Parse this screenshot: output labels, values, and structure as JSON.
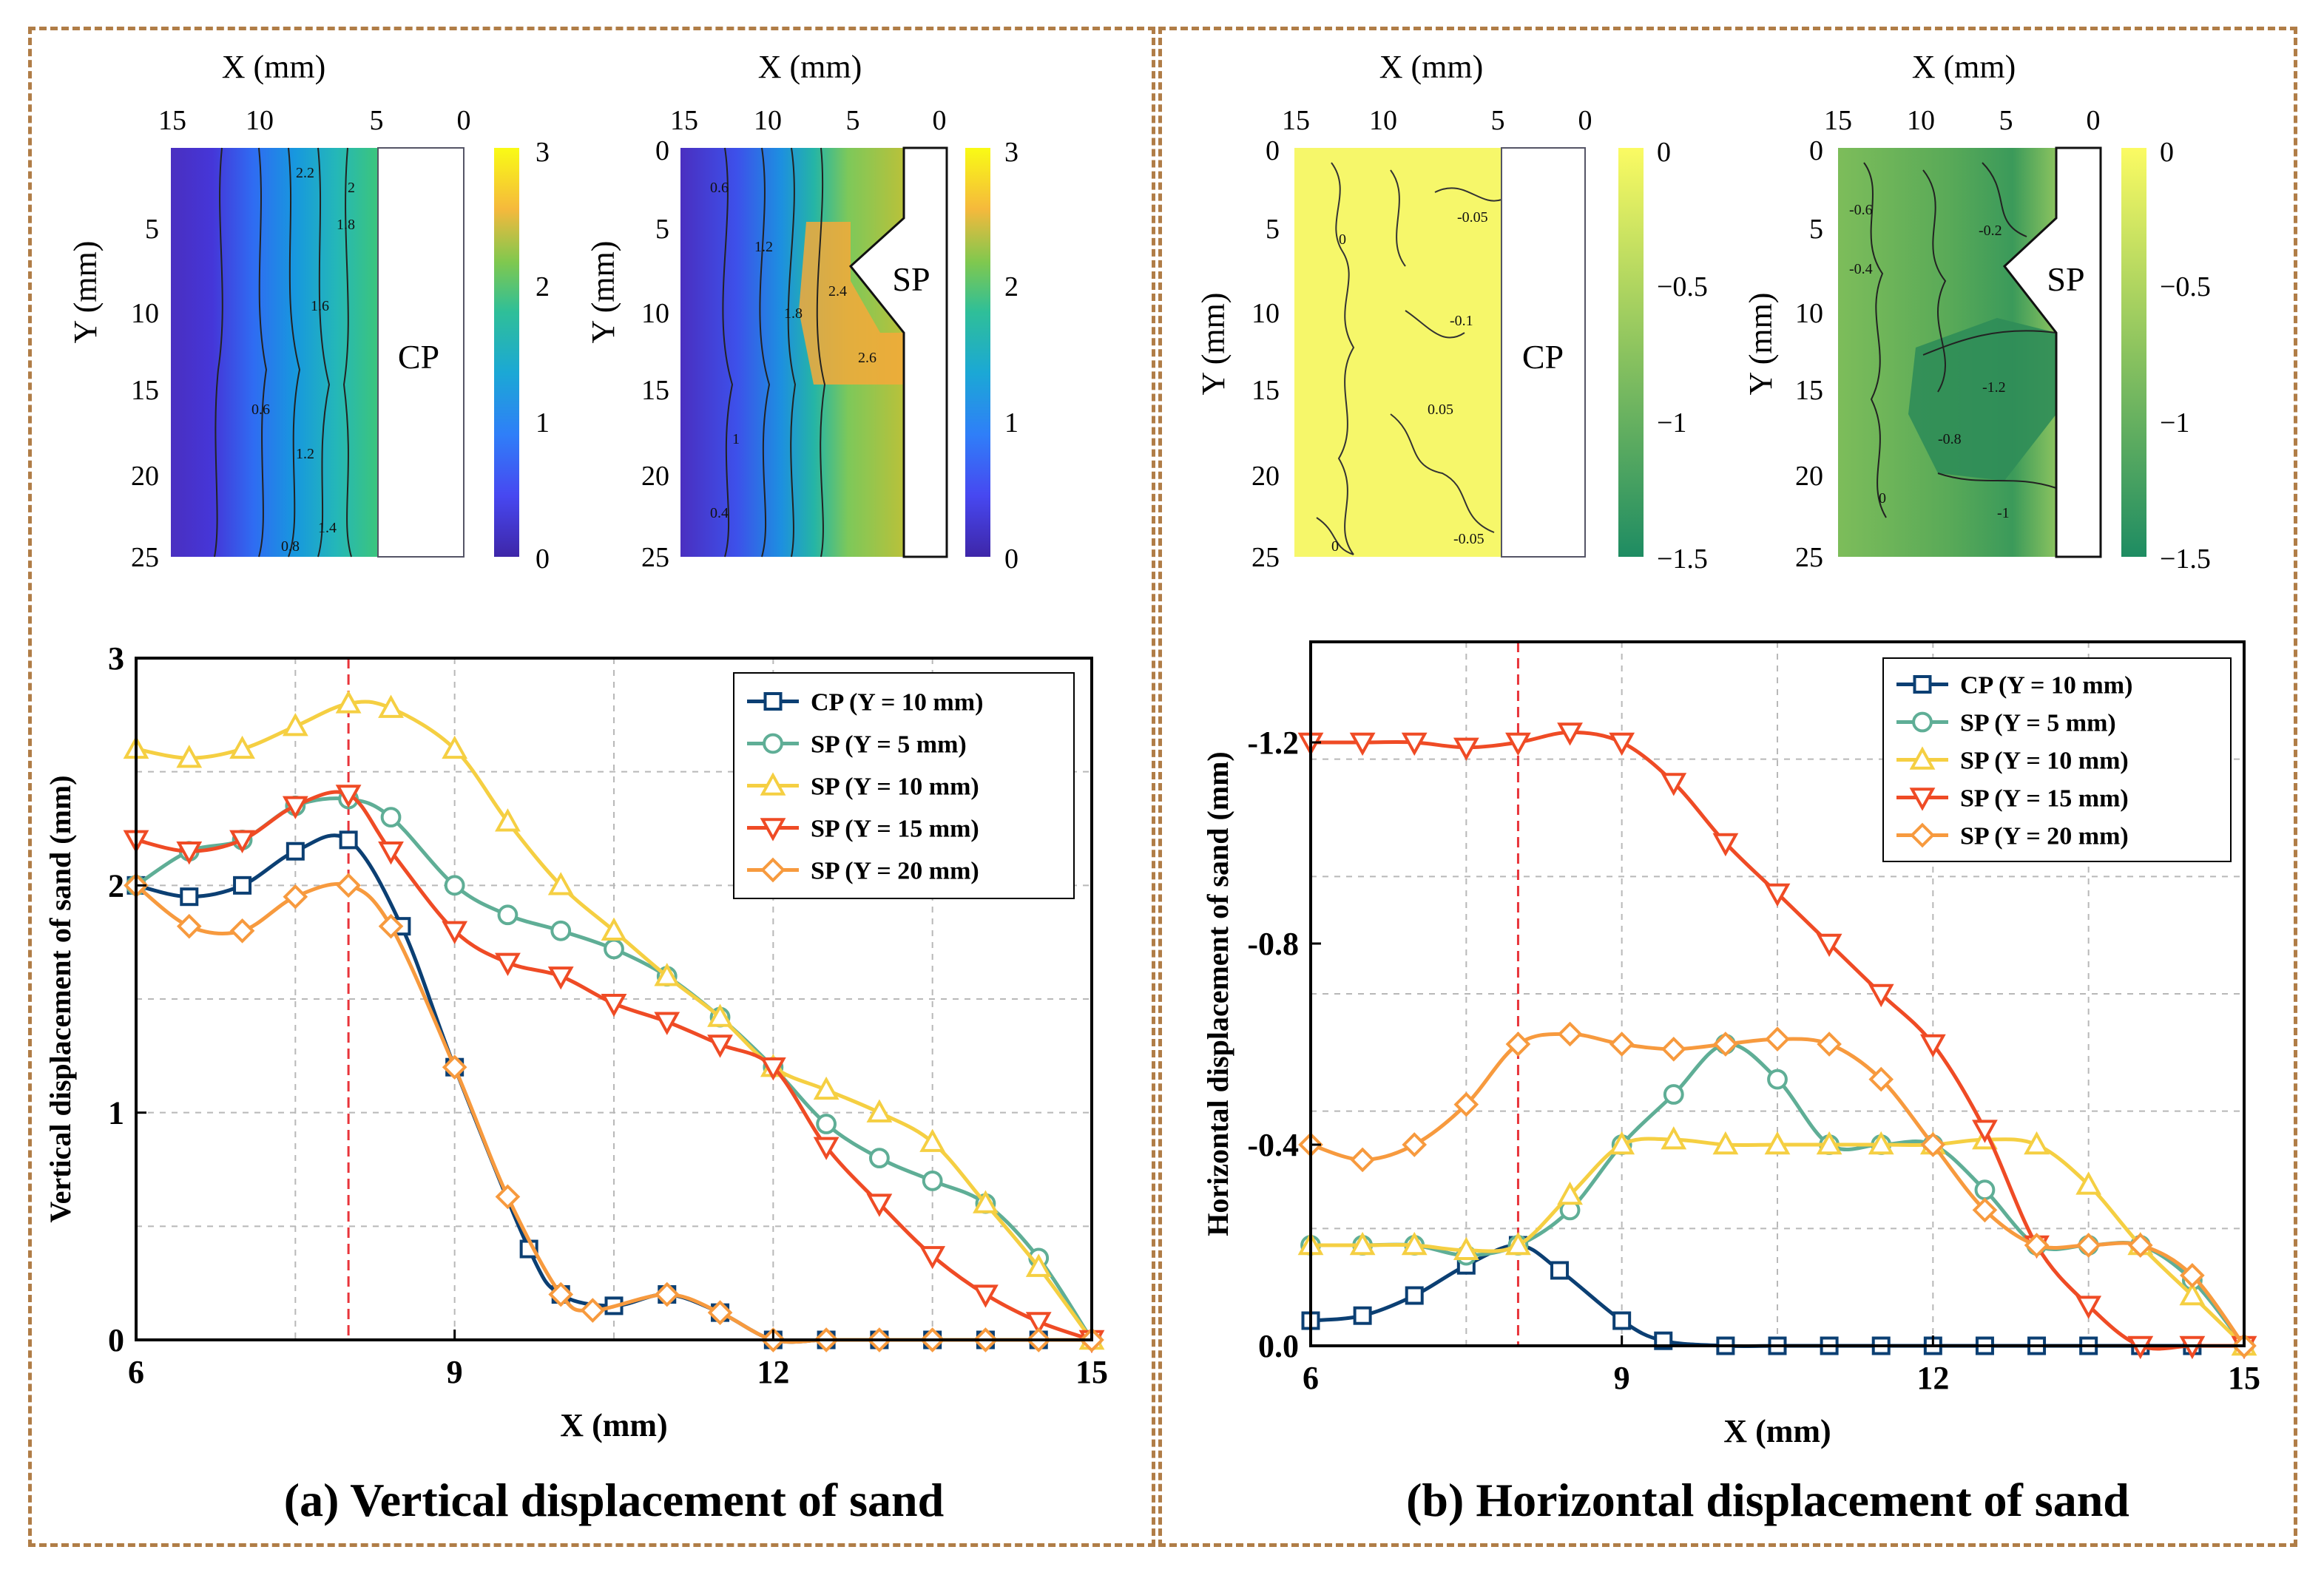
{
  "chart_data": [
    {
      "panel": "a",
      "type": "line",
      "caption": "(a) Vertical displacement of sand",
      "xlabel": "X (mm)",
      "ylabel": "Vertical displacement of sand (mm)",
      "xlim": [
        6,
        15
      ],
      "ylim": [
        0,
        3
      ],
      "xticks": [
        "6",
        "9",
        "12",
        "15"
      ],
      "yticks": [
        "0",
        "1",
        "2",
        "3"
      ],
      "grid": true,
      "legend_position": "top-right",
      "reference_line_x": 8,
      "series": [
        {
          "name": "CP (Y = 10 mm)",
          "color": "#0b3f73",
          "marker": "square",
          "x": [
            6,
            6.5,
            7,
            7.5,
            8,
            8.5,
            9,
            9.7,
            10,
            10.5,
            11,
            11.5,
            12,
            12.5,
            13,
            13.5,
            14,
            14.5,
            15
          ],
          "y": [
            2.0,
            1.95,
            2.0,
            2.15,
            2.2,
            1.82,
            1.2,
            0.4,
            0.2,
            0.15,
            0.2,
            0.12,
            0.0,
            0.0,
            0.0,
            0.0,
            0.0,
            0.0,
            0.0
          ]
        },
        {
          "name": "SP (Y = 5 mm)",
          "color": "#5fae96",
          "marker": "circle",
          "x": [
            6,
            6.5,
            7,
            7.5,
            8,
            8.4,
            9,
            9.5,
            10,
            10.5,
            11,
            11.5,
            12,
            12.5,
            13,
            13.5,
            14,
            14.5,
            15
          ],
          "y": [
            2.0,
            2.15,
            2.2,
            2.35,
            2.38,
            2.3,
            2.0,
            1.87,
            1.8,
            1.72,
            1.6,
            1.42,
            1.2,
            0.95,
            0.8,
            0.7,
            0.6,
            0.36,
            0.0
          ]
        },
        {
          "name": "SP (Y = 10 mm)",
          "color": "#f5cf42",
          "marker": "triangle-up",
          "x": [
            6,
            6.5,
            7,
            7.5,
            8,
            8.4,
            9,
            9.5,
            10,
            10.5,
            11,
            11.5,
            12,
            12.5,
            13,
            13.5,
            14,
            14.5,
            15
          ],
          "y": [
            2.6,
            2.56,
            2.6,
            2.7,
            2.8,
            2.78,
            2.6,
            2.28,
            2.0,
            1.8,
            1.6,
            1.42,
            1.2,
            1.1,
            1.0,
            0.87,
            0.6,
            0.32,
            0.0
          ]
        },
        {
          "name": "SP (Y = 15 mm)",
          "color": "#ef4b25",
          "marker": "triangle-down",
          "x": [
            6,
            6.5,
            7,
            7.5,
            8,
            8.4,
            9,
            9.5,
            10,
            10.5,
            11,
            11.5,
            12,
            12.5,
            13,
            13.5,
            14,
            14.5,
            15
          ],
          "y": [
            2.2,
            2.15,
            2.2,
            2.35,
            2.4,
            2.15,
            1.8,
            1.66,
            1.6,
            1.48,
            1.4,
            1.3,
            1.2,
            0.85,
            0.6,
            0.37,
            0.2,
            0.08,
            0.0
          ]
        },
        {
          "name": "SP (Y = 20 mm)",
          "color": "#f79a3e",
          "marker": "diamond",
          "x": [
            6,
            6.5,
            7,
            7.5,
            8,
            8.4,
            9,
            9.5,
            10,
            10.3,
            11,
            11.5,
            12,
            12.5,
            13,
            13.5,
            14,
            14.5,
            15
          ],
          "y": [
            2.0,
            1.82,
            1.8,
            1.95,
            2.0,
            1.82,
            1.2,
            0.63,
            0.2,
            0.13,
            0.2,
            0.12,
            0.0,
            0.0,
            0.0,
            0.0,
            0.0,
            0.0,
            0.0
          ]
        }
      ]
    },
    {
      "panel": "b",
      "type": "line",
      "caption": "(b) Horizontal displacement of sand",
      "xlabel": "X (mm)",
      "ylabel": "Horizontal displacement of sand (mm)",
      "xlim": [
        6,
        15
      ],
      "ylim": [
        0,
        -1.4
      ],
      "xticks": [
        "6",
        "9",
        "12",
        "15"
      ],
      "yticks": [
        "0.0",
        "-0.4",
        "-0.8",
        "-1.2"
      ],
      "grid": true,
      "legend_position": "top-right",
      "reference_line_x": 8,
      "series": [
        {
          "name": "CP (Y = 10 mm)",
          "color": "#0b3f73",
          "marker": "square",
          "x": [
            6,
            6.5,
            7,
            7.5,
            8,
            8.4,
            9,
            9.4,
            10,
            10.5,
            11,
            11.5,
            12,
            12.5,
            13,
            13.5,
            14,
            14.5,
            15
          ],
          "y": [
            -0.05,
            -0.06,
            -0.1,
            -0.16,
            -0.2,
            -0.15,
            -0.05,
            -0.01,
            0.0,
            0.0,
            0.0,
            0.0,
            0.0,
            0.0,
            0.0,
            0.0,
            0.0,
            0.0,
            0.0
          ]
        },
        {
          "name": "SP (Y = 5 mm)",
          "color": "#5fae96",
          "marker": "circle",
          "x": [
            6,
            6.5,
            7,
            7.5,
            8,
            8.5,
            9,
            9.5,
            10,
            10.5,
            11,
            11.5,
            12,
            12.5,
            13,
            13.5,
            14,
            14.5,
            15
          ],
          "y": [
            -0.2,
            -0.2,
            -0.2,
            -0.18,
            -0.2,
            -0.27,
            -0.4,
            -0.5,
            -0.6,
            -0.53,
            -0.4,
            -0.4,
            -0.4,
            -0.31,
            -0.2,
            -0.2,
            -0.2,
            -0.13,
            0.0
          ]
        },
        {
          "name": "SP (Y = 10 mm)",
          "color": "#f5cf42",
          "marker": "triangle-up",
          "x": [
            6,
            6.5,
            7,
            7.5,
            8,
            8.5,
            9,
            9.5,
            10,
            10.5,
            11,
            11.5,
            12,
            12.5,
            13,
            13.5,
            14,
            14.5,
            15
          ],
          "y": [
            -0.2,
            -0.2,
            -0.2,
            -0.19,
            -0.2,
            -0.3,
            -0.4,
            -0.41,
            -0.4,
            -0.4,
            -0.4,
            -0.4,
            -0.4,
            -0.41,
            -0.4,
            -0.32,
            -0.2,
            -0.1,
            0.0
          ]
        },
        {
          "name": "SP (Y = 15 mm)",
          "color": "#ef4b25",
          "marker": "triangle-down",
          "x": [
            6,
            6.5,
            7,
            7.5,
            8,
            8.5,
            9,
            9.5,
            10,
            10.5,
            11,
            11.5,
            12,
            12.5,
            13,
            13.5,
            14,
            14.5,
            15
          ],
          "y": [
            -1.2,
            -1.2,
            -1.2,
            -1.19,
            -1.2,
            -1.22,
            -1.2,
            -1.12,
            -1.0,
            -0.9,
            -0.8,
            -0.7,
            -0.6,
            -0.43,
            -0.2,
            -0.08,
            0.0,
            0.0,
            0.0
          ]
        },
        {
          "name": "SP (Y = 20 mm)",
          "color": "#f79a3e",
          "marker": "diamond",
          "x": [
            6,
            6.5,
            7,
            7.5,
            8,
            8.5,
            9,
            9.5,
            10,
            10.5,
            11,
            11.5,
            12,
            12.5,
            13,
            13.5,
            14,
            14.5,
            15
          ],
          "y": [
            -0.4,
            -0.37,
            -0.4,
            -0.48,
            -0.6,
            -0.62,
            -0.6,
            -0.59,
            -0.6,
            -0.61,
            -0.6,
            -0.53,
            -0.4,
            -0.27,
            -0.2,
            -0.2,
            -0.2,
            -0.14,
            0.0
          ]
        }
      ]
    }
  ],
  "contour_maps": [
    {
      "id": "a-cp",
      "pile_label": "CP",
      "xlabel": "X (mm)",
      "ylabel": "Y (mm)",
      "xticks": [
        "15",
        "10",
        "5",
        "0"
      ],
      "yticks": [
        "5",
        "10",
        "15",
        "20",
        "25"
      ],
      "colorbar_ticks": [
        "3",
        "2",
        "1",
        "0"
      ],
      "colormap": "parula",
      "contour_labels": [
        "0.8",
        "1.4",
        "1.8",
        "2",
        "1.6",
        "1.2",
        "0.6",
        "2.2"
      ]
    },
    {
      "id": "a-sp",
      "pile_label": "SP",
      "xlabel": "X (mm)",
      "ylabel": "Y (mm)",
      "xticks": [
        "15",
        "10",
        "5",
        "0"
      ],
      "yticks": [
        "0",
        "5",
        "10",
        "15",
        "20",
        "25"
      ],
      "colorbar_ticks": [
        "3",
        "2",
        "1",
        "0"
      ],
      "colormap": "parula",
      "contour_labels": [
        "0.6",
        "1.2",
        "1.8",
        "2.4",
        "2.6",
        "1",
        "0.4"
      ]
    },
    {
      "id": "b-cp",
      "pile_label": "CP",
      "xlabel": "X (mm)",
      "ylabel": "Y (mm)",
      "xticks": [
        "15",
        "10",
        "5",
        "0"
      ],
      "yticks": [
        "0",
        "5",
        "10",
        "15",
        "20",
        "25"
      ],
      "colorbar_ticks": [
        "0",
        "−0.5",
        "−1",
        "−1.5"
      ],
      "colormap": "summer",
      "contour_labels": [
        "0",
        "-0.05",
        "-0.1",
        "0.05",
        "-0.05",
        "0"
      ]
    },
    {
      "id": "b-sp",
      "pile_label": "SP",
      "xlabel": "X (mm)",
      "ylabel": "Y (mm)",
      "xticks": [
        "15",
        "10",
        "5",
        "0"
      ],
      "yticks": [
        "0",
        "5",
        "10",
        "15",
        "20",
        "25"
      ],
      "colorbar_ticks": [
        "0",
        "−0.5",
        "−1",
        "−1.5"
      ],
      "colormap": "summer",
      "contour_labels": [
        "-0.2",
        "-0.4",
        "-0.6",
        "-1.2",
        "-0.8",
        "-1",
        "0"
      ]
    }
  ]
}
